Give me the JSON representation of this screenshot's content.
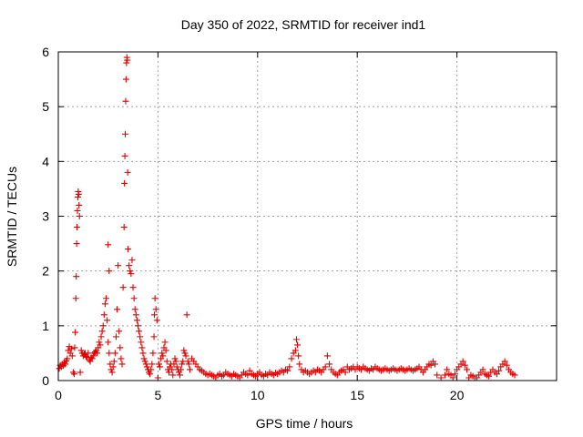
{
  "chart_data": {
    "type": "scatter",
    "title": "Day 350 of 2022, SRMTID for receiver ind1",
    "xlabel": "GPS time / hours",
    "ylabel": "SRMTID / TECUs",
    "xlim": [
      0,
      25
    ],
    "ylim": [
      0,
      6
    ],
    "xticks": [
      0,
      5,
      10,
      15,
      20
    ],
    "yticks": [
      0,
      1,
      2,
      3,
      4,
      5,
      6
    ],
    "grid": true,
    "marker": "plus",
    "color": "#e00000",
    "series": [
      {
        "name": "SRMTID",
        "points": [
          [
            0.05,
            0.22
          ],
          [
            0.1,
            0.28
          ],
          [
            0.15,
            0.25
          ],
          [
            0.2,
            0.3
          ],
          [
            0.25,
            0.27
          ],
          [
            0.3,
            0.33
          ],
          [
            0.35,
            0.3
          ],
          [
            0.4,
            0.36
          ],
          [
            0.45,
            0.4
          ],
          [
            0.5,
            0.55
          ],
          [
            0.55,
            0.62
          ],
          [
            0.6,
            0.5
          ],
          [
            0.65,
            0.58
          ],
          [
            0.7,
            0.45
          ],
          [
            0.75,
            0.15
          ],
          [
            0.8,
            0.12
          ],
          [
            0.82,
            0.6
          ],
          [
            0.85,
            0.88
          ],
          [
            0.88,
            1.5
          ],
          [
            0.9,
            1.9
          ],
          [
            0.92,
            2.5
          ],
          [
            0.94,
            2.8
          ],
          [
            0.96,
            3.1
          ],
          [
            0.98,
            3.35
          ],
          [
            1.0,
            3.45
          ],
          [
            1.02,
            3.4
          ],
          [
            1.04,
            3.2
          ],
          [
            1.06,
            3.0
          ],
          [
            1.1,
            0.15
          ],
          [
            1.15,
            0.55
          ],
          [
            1.2,
            0.5
          ],
          [
            1.25,
            0.45
          ],
          [
            1.3,
            0.48
          ],
          [
            1.35,
            0.5
          ],
          [
            1.4,
            0.44
          ],
          [
            1.45,
            0.42
          ],
          [
            1.5,
            0.5
          ],
          [
            1.55,
            0.38
          ],
          [
            1.6,
            0.35
          ],
          [
            1.65,
            0.42
          ],
          [
            1.7,
            0.4
          ],
          [
            1.75,
            0.45
          ],
          [
            1.8,
            0.5
          ],
          [
            1.85,
            0.52
          ],
          [
            1.9,
            0.55
          ],
          [
            1.95,
            0.5
          ],
          [
            2.0,
            0.6
          ],
          [
            2.05,
            0.7
          ],
          [
            2.1,
            0.65
          ],
          [
            2.15,
            0.8
          ],
          [
            2.2,
            0.9
          ],
          [
            2.25,
            1.0
          ],
          [
            2.3,
            1.2
          ],
          [
            2.35,
            1.4
          ],
          [
            2.4,
            1.5
          ],
          [
            2.45,
            1.1
          ],
          [
            2.5,
            0.7
          ],
          [
            2.55,
            0.5
          ],
          [
            2.5,
            2.48
          ],
          [
            2.55,
            2.0
          ],
          [
            2.6,
            0.3
          ],
          [
            2.65,
            0.2
          ],
          [
            2.7,
            0.15
          ],
          [
            2.75,
            0.25
          ],
          [
            2.8,
            0.35
          ],
          [
            2.85,
            0.5
          ],
          [
            2.9,
            0.8
          ],
          [
            2.95,
            1.3
          ],
          [
            3.0,
            2.1
          ],
          [
            3.05,
            0.9
          ],
          [
            3.1,
            0.6
          ],
          [
            3.15,
            0.4
          ],
          [
            3.2,
            0.3
          ],
          [
            3.25,
            1.7
          ],
          [
            3.3,
            2.8
          ],
          [
            3.32,
            3.6
          ],
          [
            3.34,
            4.1
          ],
          [
            3.36,
            4.5
          ],
          [
            3.38,
            5.1
          ],
          [
            3.4,
            5.5
          ],
          [
            3.42,
            5.8
          ],
          [
            3.44,
            5.9
          ],
          [
            3.46,
            5.85
          ],
          [
            3.48,
            3.8
          ],
          [
            3.5,
            2.4
          ],
          [
            3.55,
            2.1
          ],
          [
            3.6,
            2.0
          ],
          [
            3.65,
            1.95
          ],
          [
            3.7,
            2.2
          ],
          [
            3.75,
            1.7
          ],
          [
            3.8,
            1.5
          ],
          [
            3.85,
            1.3
          ],
          [
            3.9,
            1.2
          ],
          [
            3.95,
            1.1
          ],
          [
            4.0,
            1.0
          ],
          [
            4.05,
            0.9
          ],
          [
            4.1,
            0.8
          ],
          [
            4.15,
            0.7
          ],
          [
            4.2,
            0.6
          ],
          [
            4.25,
            0.5
          ],
          [
            4.3,
            0.4
          ],
          [
            4.35,
            0.35
          ],
          [
            4.4,
            0.3
          ],
          [
            4.45,
            0.25
          ],
          [
            4.5,
            0.2
          ],
          [
            4.55,
            0.15
          ],
          [
            4.6,
            0.12
          ],
          [
            4.65,
            0.2
          ],
          [
            4.7,
            0.3
          ],
          [
            4.75,
            0.5
          ],
          [
            4.8,
            0.8
          ],
          [
            4.82,
            1.2
          ],
          [
            4.85,
            1.5
          ],
          [
            4.9,
            1.3
          ],
          [
            4.95,
            1.1
          ],
          [
            5.0,
            0.05
          ],
          [
            5.05,
            0.3
          ],
          [
            5.1,
            0.25
          ],
          [
            5.15,
            0.4
          ],
          [
            5.2,
            0.5
          ],
          [
            5.25,
            0.45
          ],
          [
            5.3,
            0.6
          ],
          [
            5.35,
            0.7
          ],
          [
            5.4,
            0.55
          ],
          [
            5.45,
            0.35
          ],
          [
            5.5,
            0.2
          ],
          [
            5.55,
            0.15
          ],
          [
            5.6,
            0.25
          ],
          [
            5.65,
            0.3
          ],
          [
            5.7,
            0.2
          ],
          [
            5.75,
            0.1
          ],
          [
            5.8,
            0.3
          ],
          [
            5.85,
            0.4
          ],
          [
            5.9,
            0.35
          ],
          [
            5.95,
            0.25
          ],
          [
            6.0,
            0.2
          ],
          [
            6.05,
            0.15
          ],
          [
            6.1,
            0.1
          ],
          [
            6.15,
            0.2
          ],
          [
            6.2,
            0.3
          ],
          [
            6.25,
            0.35
          ],
          [
            6.3,
            0.55
          ],
          [
            6.35,
            0.5
          ],
          [
            6.4,
            0.45
          ],
          [
            6.45,
            1.2
          ],
          [
            6.5,
            0.35
          ],
          [
            6.55,
            0.3
          ],
          [
            6.6,
            0.2
          ],
          [
            6.7,
            0.4
          ],
          [
            6.8,
            0.35
          ],
          [
            6.9,
            0.3
          ],
          [
            7.0,
            0.25
          ],
          [
            7.1,
            0.2
          ],
          [
            7.2,
            0.18
          ],
          [
            7.3,
            0.15
          ],
          [
            7.4,
            0.12
          ],
          [
            7.5,
            0.1
          ],
          [
            7.6,
            0.12
          ],
          [
            7.7,
            0.1
          ],
          [
            7.8,
            0.08
          ],
          [
            7.9,
            0.05
          ],
          [
            8.0,
            0.1
          ],
          [
            8.1,
            0.12
          ],
          [
            8.2,
            0.08
          ],
          [
            8.3,
            0.1
          ],
          [
            8.4,
            0.15
          ],
          [
            8.5,
            0.12
          ],
          [
            8.6,
            0.1
          ],
          [
            8.7,
            0.08
          ],
          [
            8.8,
            0.12
          ],
          [
            8.9,
            0.1
          ],
          [
            9.0,
            0.08
          ],
          [
            9.1,
            0.05
          ],
          [
            9.2,
            0.1
          ],
          [
            9.3,
            0.15
          ],
          [
            9.4,
            0.12
          ],
          [
            9.5,
            0.1
          ],
          [
            9.6,
            0.18
          ],
          [
            9.7,
            0.12
          ],
          [
            9.8,
            0.1
          ],
          [
            9.9,
            0.08
          ],
          [
            10.0,
            0.12
          ],
          [
            10.1,
            0.15
          ],
          [
            10.2,
            0.1
          ],
          [
            10.3,
            0.08
          ],
          [
            10.4,
            0.12
          ],
          [
            10.5,
            0.1
          ],
          [
            10.6,
            0.15
          ],
          [
            10.7,
            0.12
          ],
          [
            10.8,
            0.1
          ],
          [
            10.9,
            0.14
          ],
          [
            11.0,
            0.12
          ],
          [
            11.1,
            0.15
          ],
          [
            11.2,
            0.18
          ],
          [
            11.3,
            0.15
          ],
          [
            11.4,
            0.2
          ],
          [
            11.5,
            0.18
          ],
          [
            11.6,
            0.25
          ],
          [
            11.7,
            0.4
          ],
          [
            11.8,
            0.5
          ],
          [
            11.9,
            0.55
          ],
          [
            11.95,
            0.75
          ],
          [
            12.0,
            0.65
          ],
          [
            12.05,
            0.45
          ],
          [
            12.1,
            0.3
          ],
          [
            12.2,
            0.2
          ],
          [
            12.3,
            0.15
          ],
          [
            12.4,
            0.18
          ],
          [
            12.5,
            0.15
          ],
          [
            12.6,
            0.12
          ],
          [
            12.7,
            0.15
          ],
          [
            12.8,
            0.18
          ],
          [
            12.9,
            0.15
          ],
          [
            13.0,
            0.2
          ],
          [
            13.1,
            0.18
          ],
          [
            13.2,
            0.15
          ],
          [
            13.3,
            0.2
          ],
          [
            13.4,
            0.25
          ],
          [
            13.5,
            0.45
          ],
          [
            13.6,
            0.3
          ],
          [
            13.7,
            0.2
          ],
          [
            13.8,
            0.15
          ],
          [
            13.9,
            0.12
          ],
          [
            14.0,
            0.1
          ],
          [
            14.1,
            0.15
          ],
          [
            14.2,
            0.18
          ],
          [
            14.3,
            0.2
          ],
          [
            14.4,
            0.15
          ],
          [
            14.5,
            0.25
          ],
          [
            14.6,
            0.2
          ],
          [
            14.7,
            0.22
          ],
          [
            14.8,
            0.25
          ],
          [
            14.9,
            0.2
          ],
          [
            15.0,
            0.25
          ],
          [
            15.1,
            0.22
          ],
          [
            15.2,
            0.2
          ],
          [
            15.3,
            0.25
          ],
          [
            15.4,
            0.22
          ],
          [
            15.5,
            0.2
          ],
          [
            15.6,
            0.18
          ],
          [
            15.7,
            0.22
          ],
          [
            15.8,
            0.2
          ],
          [
            15.9,
            0.25
          ],
          [
            16.0,
            0.22
          ],
          [
            16.1,
            0.2
          ],
          [
            16.2,
            0.18
          ],
          [
            16.3,
            0.2
          ],
          [
            16.4,
            0.22
          ],
          [
            16.5,
            0.2
          ],
          [
            16.6,
            0.18
          ],
          [
            16.7,
            0.2
          ],
          [
            16.8,
            0.22
          ],
          [
            16.9,
            0.2
          ],
          [
            17.0,
            0.18
          ],
          [
            17.1,
            0.2
          ],
          [
            17.2,
            0.22
          ],
          [
            17.3,
            0.2
          ],
          [
            17.4,
            0.18
          ],
          [
            17.5,
            0.2
          ],
          [
            17.6,
            0.22
          ],
          [
            17.7,
            0.2
          ],
          [
            17.8,
            0.18
          ],
          [
            17.9,
            0.2
          ],
          [
            18.0,
            0.22
          ],
          [
            18.1,
            0.25
          ],
          [
            18.2,
            0.2
          ],
          [
            18.3,
            0.15
          ],
          [
            18.4,
            0.2
          ],
          [
            18.5,
            0.25
          ],
          [
            18.6,
            0.3
          ],
          [
            18.7,
            0.28
          ],
          [
            18.8,
            0.35
          ],
          [
            18.9,
            0.3
          ],
          [
            19.0,
            0.1
          ],
          [
            19.2,
            0.05
          ],
          [
            19.4,
            0.1
          ],
          [
            19.5,
            0.2
          ],
          [
            19.6,
            0.12
          ],
          [
            19.7,
            0.1
          ],
          [
            19.8,
            0.05
          ],
          [
            19.9,
            0.12
          ],
          [
            20.0,
            0.2
          ],
          [
            20.1,
            0.25
          ],
          [
            20.2,
            0.3
          ],
          [
            20.3,
            0.35
          ],
          [
            20.4,
            0.28
          ],
          [
            20.5,
            0.2
          ],
          [
            20.6,
            0.05
          ],
          [
            20.7,
            0.1
          ],
          [
            20.8,
            0.08
          ],
          [
            20.9,
            0.05
          ],
          [
            21.0,
            0.05
          ],
          [
            21.1,
            0.1
          ],
          [
            21.2,
            0.15
          ],
          [
            21.3,
            0.2
          ],
          [
            21.4,
            0.12
          ],
          [
            21.5,
            0.1
          ],
          [
            21.6,
            0.08
          ],
          [
            21.7,
            0.15
          ],
          [
            21.8,
            0.2
          ],
          [
            21.9,
            0.15
          ],
          [
            22.0,
            0.12
          ],
          [
            22.1,
            0.18
          ],
          [
            22.2,
            0.25
          ],
          [
            22.3,
            0.3
          ],
          [
            22.4,
            0.35
          ],
          [
            22.5,
            0.28
          ],
          [
            22.6,
            0.2
          ],
          [
            22.7,
            0.15
          ],
          [
            22.8,
            0.12
          ],
          [
            22.9,
            0.1
          ]
        ]
      }
    ]
  }
}
